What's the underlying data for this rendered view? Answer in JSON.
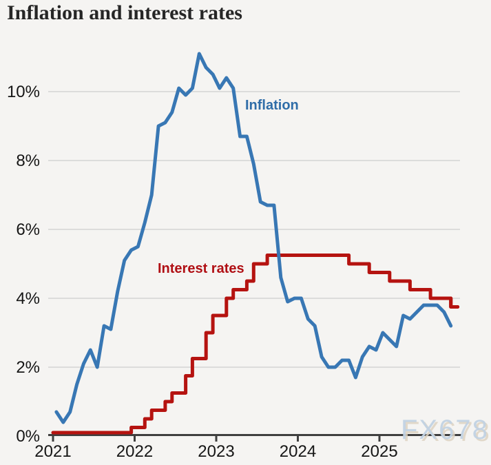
{
  "page": {
    "title": "Inflation and interest rates",
    "watermark": "FX678"
  },
  "chart_data": {
    "type": "line",
    "title": "Inflation and interest rates",
    "grid": "horizontal",
    "legend_position": "inline-annotations",
    "x_axis": {
      "ticks": [
        "2021",
        "2022",
        "2023",
        "2024",
        "2025"
      ],
      "start": "2021-01",
      "end": "2025-12"
    },
    "y_axis": {
      "ticks": [
        "0%",
        "2%",
        "4%",
        "6%",
        "8%",
        "10%"
      ],
      "min": 0,
      "max": 11.5,
      "tick_step": 2,
      "unit": "%"
    },
    "series": [
      {
        "name": "Inflation",
        "style": "line",
        "color": "#3877b4",
        "label_color": "#2f6da8",
        "points": [
          [
            "2021-01",
            0.7
          ],
          [
            "2021-02",
            0.4
          ],
          [
            "2021-03",
            0.7
          ],
          [
            "2021-04",
            1.5
          ],
          [
            "2021-05",
            2.1
          ],
          [
            "2021-06",
            2.5
          ],
          [
            "2021-07",
            2.0
          ],
          [
            "2021-08",
            3.2
          ],
          [
            "2021-09",
            3.1
          ],
          [
            "2021-10",
            4.2
          ],
          [
            "2021-11",
            5.1
          ],
          [
            "2021-12",
            5.4
          ],
          [
            "2022-01",
            5.5
          ],
          [
            "2022-02",
            6.2
          ],
          [
            "2022-03",
            7.0
          ],
          [
            "2022-04",
            9.0
          ],
          [
            "2022-05",
            9.1
          ],
          [
            "2022-06",
            9.4
          ],
          [
            "2022-07",
            10.1
          ],
          [
            "2022-08",
            9.9
          ],
          [
            "2022-09",
            10.1
          ],
          [
            "2022-10",
            11.1
          ],
          [
            "2022-11",
            10.7
          ],
          [
            "2022-12",
            10.5
          ],
          [
            "2023-01",
            10.1
          ],
          [
            "2023-02",
            10.4
          ],
          [
            "2023-03",
            10.1
          ],
          [
            "2023-04",
            8.7
          ],
          [
            "2023-05",
            8.7
          ],
          [
            "2023-06",
            7.9
          ],
          [
            "2023-07",
            6.8
          ],
          [
            "2023-08",
            6.7
          ],
          [
            "2023-09",
            6.7
          ],
          [
            "2023-10",
            4.6
          ],
          [
            "2023-11",
            3.9
          ],
          [
            "2023-12",
            4.0
          ],
          [
            "2024-01",
            4.0
          ],
          [
            "2024-02",
            3.4
          ],
          [
            "2024-03",
            3.2
          ],
          [
            "2024-04",
            2.3
          ],
          [
            "2024-05",
            2.0
          ],
          [
            "2024-06",
            2.0
          ],
          [
            "2024-07",
            2.2
          ],
          [
            "2024-08",
            2.2
          ],
          [
            "2024-09",
            1.7
          ],
          [
            "2024-10",
            2.3
          ],
          [
            "2024-11",
            2.6
          ],
          [
            "2024-12",
            2.5
          ],
          [
            "2025-01",
            3.0
          ],
          [
            "2025-02",
            2.8
          ],
          [
            "2025-03",
            2.6
          ],
          [
            "2025-04",
            3.5
          ],
          [
            "2025-05",
            3.4
          ],
          [
            "2025-06",
            3.6
          ],
          [
            "2025-07",
            3.8
          ],
          [
            "2025-08",
            3.8
          ],
          [
            "2025-09",
            3.8
          ],
          [
            "2025-10",
            3.6
          ],
          [
            "2025-11",
            3.2
          ]
        ]
      },
      {
        "name": "Interest rates",
        "style": "step",
        "color": "#b51310",
        "label_color": "#b00f14",
        "start": "2021-01",
        "initial_value": 0.1,
        "end": "2025-12",
        "final_value": 3.75,
        "changes": [
          [
            "2021-12",
            0.25
          ],
          [
            "2022-02",
            0.5
          ],
          [
            "2022-03",
            0.75
          ],
          [
            "2022-05",
            1.0
          ],
          [
            "2022-06",
            1.25
          ],
          [
            "2022-08",
            1.75
          ],
          [
            "2022-09",
            2.25
          ],
          [
            "2022-11",
            3.0
          ],
          [
            "2022-12",
            3.5
          ],
          [
            "2023-02",
            4.0
          ],
          [
            "2023-03",
            4.25
          ],
          [
            "2023-05",
            4.5
          ],
          [
            "2023-06",
            5.0
          ],
          [
            "2023-08",
            5.25
          ],
          [
            "2024-08",
            5.0
          ],
          [
            "2024-11",
            4.75
          ],
          [
            "2025-02",
            4.5
          ],
          [
            "2025-05",
            4.25
          ],
          [
            "2025-08",
            4.0
          ],
          [
            "2025-11",
            3.75
          ]
        ]
      }
    ],
    "watermark": "FX678"
  }
}
